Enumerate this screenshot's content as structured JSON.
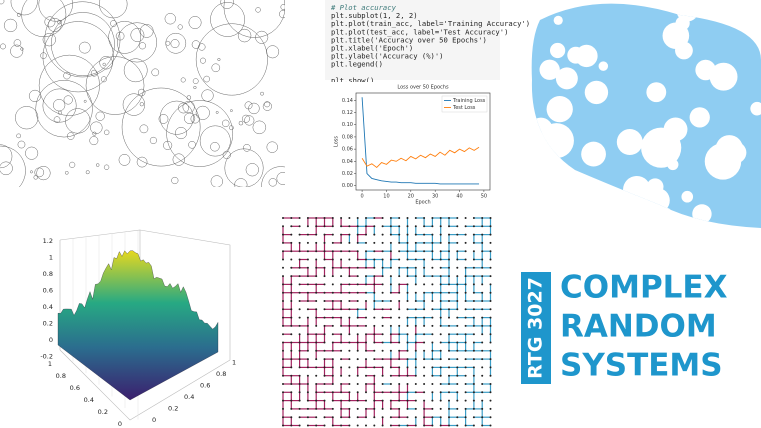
{
  "code": {
    "lines": [
      "# Plot accuracy",
      "plt.subplot(1, 2, 2)",
      "plt.plot(train_acc, label='Training Accuracy')",
      "plt.plot(test_acc, label='Test Accuracy')",
      "plt.title('Accuracy over 50 Epochs')",
      "plt.xlabel('Epoch')",
      "plt.ylabel('Accuracy (%)')",
      "plt.legend()",
      "plt.show()"
    ]
  },
  "loss_chart": {
    "type": "line",
    "title": "Loss over 50 Epochs",
    "x_label": "Epoch",
    "y_label": "Loss",
    "x": [
      0,
      2,
      4,
      6,
      8,
      10,
      12,
      14,
      16,
      18,
      20,
      22,
      24,
      26,
      28,
      30,
      32,
      34,
      36,
      38,
      40,
      42,
      44,
      46,
      48
    ],
    "series": [
      {
        "name": "Training Loss",
        "color": "#1f77b4",
        "values": [
          0.145,
          0.02,
          0.012,
          0.01,
          0.008,
          0.007,
          0.006,
          0.006,
          0.005,
          0.005,
          0.005,
          0.004,
          0.004,
          0.004,
          0.004,
          0.004,
          0.003,
          0.003,
          0.003,
          0.003,
          0.003,
          0.003,
          0.003,
          0.003,
          0.003
        ]
      },
      {
        "name": "Test Loss",
        "color": "#ff7f0e",
        "values": [
          0.045,
          0.032,
          0.036,
          0.03,
          0.038,
          0.035,
          0.042,
          0.04,
          0.045,
          0.041,
          0.048,
          0.044,
          0.05,
          0.046,
          0.052,
          0.048,
          0.055,
          0.05,
          0.058,
          0.054,
          0.06,
          0.056,
          0.062,
          0.058,
          0.063
        ]
      }
    ],
    "xlim": [
      -2.5,
      52.5
    ],
    "ylim": [
      -0.007,
      0.152
    ],
    "xticks": [
      0,
      10,
      20,
      30,
      40,
      50
    ],
    "yticks": [
      {
        "value": 0,
        "label": "0.00"
      },
      {
        "value": 0.02,
        "label": "0.02"
      },
      {
        "value": 0.04,
        "label": "0.04"
      },
      {
        "value": 0.06,
        "label": "0.06"
      },
      {
        "value": 0.08,
        "label": "0.08"
      },
      {
        "value": 0.1,
        "label": "0.10"
      },
      {
        "value": 0.12,
        "label": "0.12"
      },
      {
        "value": 0.14,
        "label": "0.14"
      }
    ],
    "legend": "upper right"
  },
  "surface_plot": {
    "zticks": [
      1.2,
      1,
      0.8,
      0.6,
      0.4,
      0.2,
      0,
      -0.2
    ],
    "yticks": [
      1,
      0.8,
      0.6,
      0.4,
      0.2,
      0
    ],
    "xticks": [
      0,
      0.2,
      0.4,
      0.6,
      0.8,
      1
    ]
  },
  "logo": {
    "badge": "RTG 3027",
    "lines": [
      "COMPLEX",
      "RANDOM",
      "SYSTEMS"
    ]
  }
}
